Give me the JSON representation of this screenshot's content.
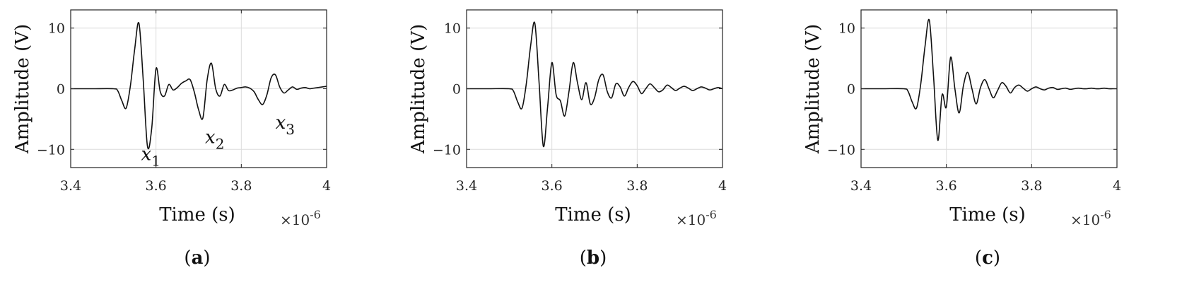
{
  "chart_data": [
    {
      "type": "line",
      "caption": "a",
      "xlabel": "Time (s)",
      "ylabel": "Amplitude (V)",
      "x_scale_label": "×10",
      "x_scale_exponent": "-6",
      "xlim": [
        3.4,
        4.0
      ],
      "ylim": [
        -13,
        13
      ],
      "xticks": [
        "3.4",
        "3.6",
        "3.8",
        "4"
      ],
      "yticks": [
        "10",
        "0",
        "−10"
      ],
      "grid": true,
      "annotations": [
        {
          "text": "x",
          "sub": "1",
          "x": 3.565,
          "y": -11.8
        },
        {
          "text": "x",
          "sub": "2",
          "x": 3.715,
          "y": -9.0
        },
        {
          "text": "x",
          "sub": "3",
          "x": 3.88,
          "y": -6.6
        }
      ],
      "series": [
        {
          "x": [
            3.4,
            3.45,
            3.5,
            3.51,
            3.52,
            3.53,
            3.54,
            3.55,
            3.56,
            3.57,
            3.58,
            3.59,
            3.6,
            3.61,
            3.62,
            3.63,
            3.64,
            3.65,
            3.66,
            3.67,
            3.68,
            3.69,
            3.7,
            3.71,
            3.72,
            3.73,
            3.74,
            3.75,
            3.76,
            3.77,
            3.78,
            3.79,
            3.8,
            3.81,
            3.82,
            3.83,
            3.84,
            3.85,
            3.86,
            3.87,
            3.88,
            3.89,
            3.9,
            3.91,
            3.92,
            3.93,
            3.94,
            3.95,
            3.96,
            3.97,
            3.98,
            3.99,
            4.0
          ],
          "y": [
            0,
            0,
            0,
            -0.3,
            -2.0,
            -3.2,
            0.5,
            6.5,
            10.8,
            1.5,
            -9.5,
            -6.5,
            3.3,
            -0.5,
            -1.2,
            0.7,
            -0.2,
            0.2,
            0.9,
            1.3,
            1.5,
            -0.6,
            -3.5,
            -4.8,
            1.5,
            4.2,
            0.0,
            -1.2,
            0.7,
            -0.3,
            -0.2,
            0.1,
            0.2,
            0.3,
            0.1,
            -0.5,
            -1.8,
            -2.6,
            -1.0,
            1.8,
            2.3,
            0.3,
            -0.7,
            -0.2,
            0.3,
            -0.1,
            0.1,
            0.2,
            0.0,
            0.1,
            0.2,
            0.3,
            0.4
          ]
        }
      ]
    },
    {
      "type": "line",
      "caption": "b",
      "xlabel": "Time (s)",
      "ylabel": "Amplitude (V)",
      "x_scale_label": "×10",
      "x_scale_exponent": "-6",
      "xlim": [
        3.4,
        4.0
      ],
      "ylim": [
        -13,
        13
      ],
      "xticks": [
        "3.4",
        "3.6",
        "3.8",
        "4"
      ],
      "yticks": [
        "10",
        "0",
        "−10"
      ],
      "grid": true,
      "series": [
        {
          "x": [
            3.4,
            3.45,
            3.5,
            3.51,
            3.52,
            3.53,
            3.54,
            3.55,
            3.56,
            3.57,
            3.58,
            3.59,
            3.6,
            3.61,
            3.62,
            3.63,
            3.64,
            3.65,
            3.66,
            3.67,
            3.68,
            3.69,
            3.7,
            3.71,
            3.72,
            3.73,
            3.74,
            3.75,
            3.76,
            3.77,
            3.78,
            3.79,
            3.8,
            3.81,
            3.82,
            3.83,
            3.84,
            3.85,
            3.86,
            3.87,
            3.88,
            3.89,
            3.9,
            3.91,
            3.92,
            3.93,
            3.94,
            3.95,
            3.96,
            3.97,
            3.98,
            3.99,
            4.0
          ],
          "y": [
            0,
            0,
            0,
            -0.4,
            -2.2,
            -3.2,
            0.8,
            7.0,
            10.8,
            1.0,
            -9.5,
            -3.0,
            4.3,
            -1.0,
            -2.0,
            -4.5,
            -0.5,
            4.3,
            1.0,
            -1.8,
            1.0,
            -2.5,
            -1.5,
            1.5,
            2.3,
            -0.5,
            -1.5,
            0.8,
            0.3,
            -1.2,
            0.2,
            1.2,
            0.5,
            -0.8,
            0.0,
            0.8,
            0.2,
            -0.5,
            -0.2,
            0.6,
            0.2,
            -0.3,
            0.1,
            0.4,
            0.1,
            -0.3,
            0.0,
            0.3,
            0.1,
            -0.2,
            0.0,
            0.2,
            0.0
          ]
        }
      ]
    },
    {
      "type": "line",
      "caption": "c",
      "xlabel": "Time (s)",
      "ylabel": "Amplitude (V)",
      "x_scale_label": "×10",
      "x_scale_exponent": "-6",
      "xlim": [
        3.4,
        4.0
      ],
      "ylim": [
        -13,
        13
      ],
      "xticks": [
        "3.4",
        "3.6",
        "3.8",
        "4"
      ],
      "yticks": [
        "10",
        "0",
        "−10"
      ],
      "grid": true,
      "series": [
        {
          "x": [
            3.4,
            3.45,
            3.5,
            3.51,
            3.52,
            3.53,
            3.54,
            3.55,
            3.56,
            3.57,
            3.58,
            3.59,
            3.6,
            3.61,
            3.62,
            3.63,
            3.64,
            3.65,
            3.66,
            3.67,
            3.68,
            3.69,
            3.7,
            3.71,
            3.72,
            3.73,
            3.74,
            3.75,
            3.76,
            3.77,
            3.78,
            3.79,
            3.8,
            3.81,
            3.82,
            3.83,
            3.84,
            3.85,
            3.86,
            3.87,
            3.88,
            3.89,
            3.9,
            3.91,
            3.92,
            3.93,
            3.94,
            3.95,
            3.96,
            3.97,
            3.98,
            3.99,
            4.0
          ],
          "y": [
            0,
            0,
            0,
            -0.4,
            -2.2,
            -3.2,
            0.8,
            7.0,
            11.3,
            2.0,
            -8.5,
            -1.0,
            -3.0,
            5.2,
            0.0,
            -4.0,
            0.5,
            2.7,
            0.0,
            -2.5,
            0.2,
            1.5,
            0.0,
            -1.5,
            -0.3,
            1.0,
            0.4,
            -0.7,
            0.2,
            0.6,
            0.1,
            -0.4,
            0.0,
            0.3,
            0.0,
            -0.2,
            0.1,
            0.2,
            -0.1,
            0.0,
            0.1,
            -0.1,
            0.0,
            0.1,
            0.0,
            0.0,
            0.1,
            0.0,
            0.0,
            0.1,
            0.0,
            0.0,
            0.0
          ]
        }
      ]
    }
  ]
}
